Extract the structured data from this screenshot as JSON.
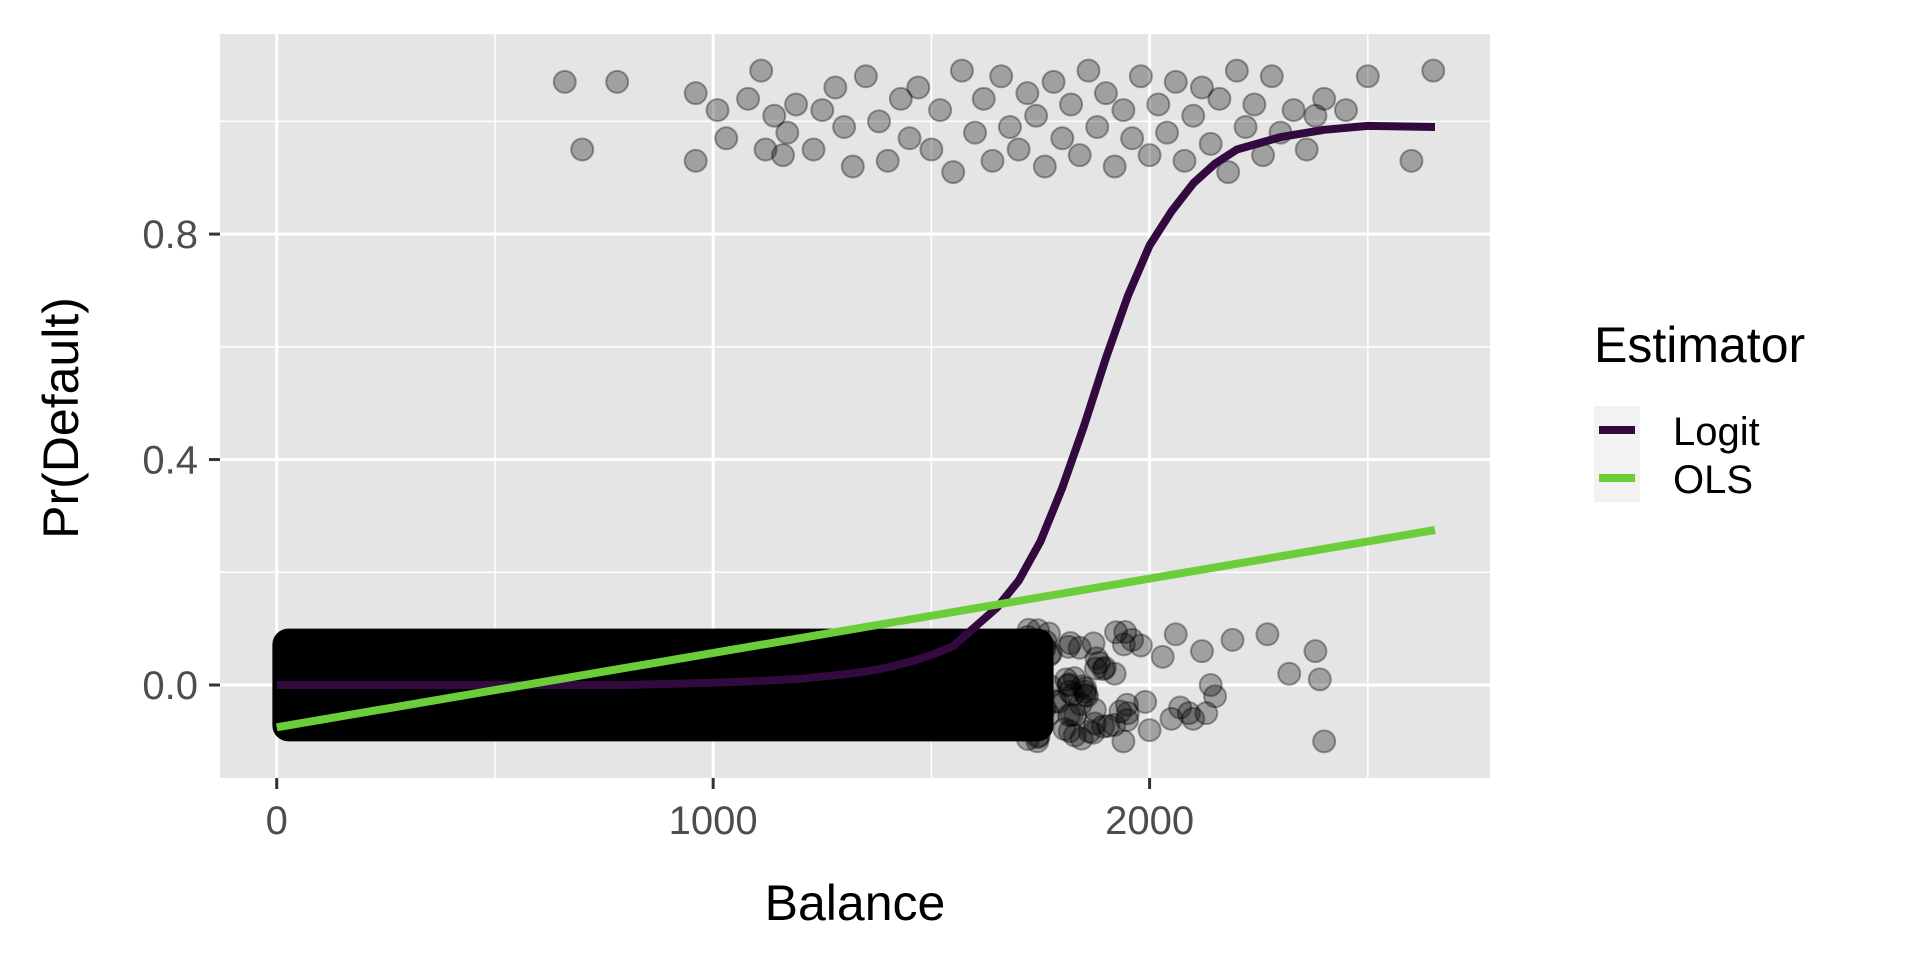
{
  "chart_data": {
    "type": "scatter",
    "xlabel": "Balance",
    "ylabel": "Pr(Default)",
    "xlim": [
      -130,
      2780
    ],
    "ylim": [
      -0.165,
      1.155
    ],
    "x_ticks": [
      0,
      1000,
      2000
    ],
    "x_tick_labels": [
      "0",
      "1000",
      "2000"
    ],
    "y_ticks": [
      0.0,
      0.4,
      0.8
    ],
    "y_tick_labels": [
      "0.0",
      "0.4",
      "0.8"
    ],
    "grid": true,
    "legend": {
      "title": "Estimator",
      "placement": "right",
      "entries": [
        "Logit",
        "OLS"
      ]
    },
    "points": {
      "description": "jittered observations, y = default (0/1) plus jitter of about ±0.1",
      "color": "#000000",
      "alpha": 0.3,
      "default_0": [
        [
          2050,
          -0.06
        ],
        [
          2090,
          -0.05
        ],
        [
          2120,
          0.06
        ],
        [
          2150,
          -0.02
        ],
        [
          2130,
          -0.05
        ],
        [
          2190,
          0.08
        ],
        [
          2270,
          0.09
        ],
        [
          2320,
          0.02
        ],
        [
          2380,
          0.06
        ],
        [
          2390,
          0.01
        ],
        [
          2400,
          -0.1
        ],
        [
          2070,
          -0.04
        ],
        [
          2030,
          0.05
        ],
        [
          1990,
          -0.03
        ],
        [
          1960,
          0.08
        ],
        [
          1940,
          -0.1
        ],
        [
          1920,
          0.02
        ],
        [
          1980,
          0.07
        ],
        [
          2000,
          -0.08
        ],
        [
          1950,
          -0.05
        ],
        [
          2100,
          -0.06
        ],
        [
          2140,
          0.0
        ],
        [
          2060,
          0.09
        ]
      ],
      "default_1": [
        [
          660,
          1.07
        ],
        [
          700,
          0.95
        ],
        [
          780,
          1.07
        ],
        [
          960,
          0.93
        ],
        [
          960,
          1.05
        ],
        [
          1010,
          1.02
        ],
        [
          1030,
          0.97
        ],
        [
          1080,
          1.04
        ],
        [
          1110,
          1.09
        ],
        [
          1120,
          0.95
        ],
        [
          1140,
          1.01
        ],
        [
          1160,
          0.94
        ],
        [
          1170,
          0.98
        ],
        [
          1190,
          1.03
        ],
        [
          1230,
          0.95
        ],
        [
          1250,
          1.02
        ],
        [
          1280,
          1.06
        ],
        [
          1300,
          0.99
        ],
        [
          1320,
          0.92
        ],
        [
          1350,
          1.08
        ],
        [
          1380,
          1.0
        ],
        [
          1400,
          0.93
        ],
        [
          1430,
          1.04
        ],
        [
          1450,
          0.97
        ],
        [
          1470,
          1.06
        ],
        [
          1500,
          0.95
        ],
        [
          1520,
          1.02
        ],
        [
          1550,
          0.91
        ],
        [
          1570,
          1.09
        ],
        [
          1600,
          0.98
        ],
        [
          1620,
          1.04
        ],
        [
          1640,
          0.93
        ],
        [
          1660,
          1.08
        ],
        [
          1680,
          0.99
        ],
        [
          1700,
          0.95
        ],
        [
          1720,
          1.05
        ],
        [
          1740,
          1.01
        ],
        [
          1760,
          0.92
        ],
        [
          1780,
          1.07
        ],
        [
          1800,
          0.97
        ],
        [
          1820,
          1.03
        ],
        [
          1840,
          0.94
        ],
        [
          1860,
          1.09
        ],
        [
          1880,
          0.99
        ],
        [
          1900,
          1.05
        ],
        [
          1920,
          0.92
        ],
        [
          1940,
          1.02
        ],
        [
          1960,
          0.97
        ],
        [
          1980,
          1.08
        ],
        [
          2000,
          0.94
        ],
        [
          2020,
          1.03
        ],
        [
          2040,
          0.98
        ],
        [
          2060,
          1.07
        ],
        [
          2080,
          0.93
        ],
        [
          2100,
          1.01
        ],
        [
          2120,
          1.06
        ],
        [
          2140,
          0.96
        ],
        [
          2160,
          1.04
        ],
        [
          2180,
          0.91
        ],
        [
          2200,
          1.09
        ],
        [
          2220,
          0.99
        ],
        [
          2240,
          1.03
        ],
        [
          2260,
          0.94
        ],
        [
          2280,
          1.08
        ],
        [
          2300,
          0.98
        ],
        [
          2330,
          1.02
        ],
        [
          2360,
          0.95
        ],
        [
          2380,
          1.01
        ],
        [
          2400,
          1.04
        ],
        [
          2450,
          1.02
        ],
        [
          2500,
          1.08
        ],
        [
          2600,
          0.93
        ],
        [
          2650,
          1.09
        ]
      ]
    },
    "series": [
      {
        "name": "Logit",
        "color": "#320a40",
        "x": [
          0,
          200,
          400,
          600,
          800,
          1000,
          1100,
          1200,
          1300,
          1350,
          1400,
          1450,
          1500,
          1550,
          1600,
          1650,
          1700,
          1750,
          1800,
          1850,
          1900,
          1950,
          2000,
          2050,
          2100,
          2150,
          2200,
          2300,
          2400,
          2500,
          2654
        ],
        "y": [
          0.0,
          0.0,
          0.0,
          0.0,
          0.0,
          0.004,
          0.007,
          0.011,
          0.019,
          0.024,
          0.031,
          0.041,
          0.053,
          0.069,
          0.103,
          0.137,
          0.185,
          0.255,
          0.35,
          0.46,
          0.58,
          0.69,
          0.78,
          0.84,
          0.89,
          0.925,
          0.95,
          0.972,
          0.985,
          0.992,
          0.99
        ]
      },
      {
        "name": "OLS",
        "color": "#6ccd3a",
        "x": [
          0,
          2654
        ],
        "y": [
          -0.075,
          0.275
        ]
      }
    ]
  }
}
